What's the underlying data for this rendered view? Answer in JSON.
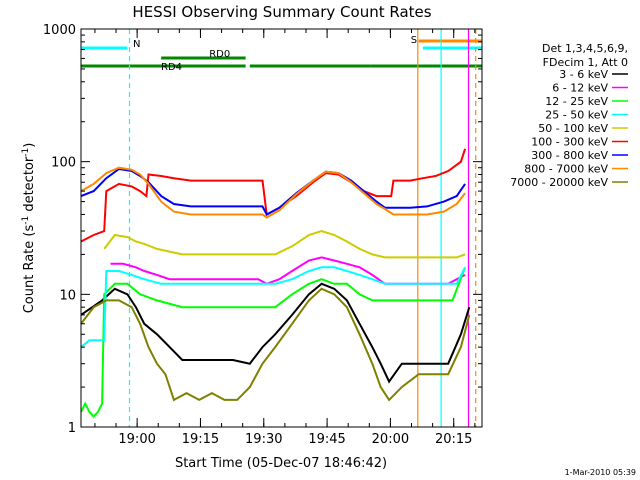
{
  "chart_data": {
    "type": "line",
    "title": "HESSI Observing Summary Count Rates",
    "xlabel": "Start Time (05-Dec-07 18:46:42)",
    "ylabel": "Count Rate (s⁻¹ detector⁻¹)",
    "ylabel_main": "Count Rate (s",
    "ylabel_sup1": "-1",
    "ylabel_mid": " detector",
    "ylabel_sup2": "-1",
    "ylabel_end": ")",
    "yscale": "log",
    "ylim": [
      1,
      1000
    ],
    "xlim_minutes": [
      0,
      95
    ],
    "x_ticks": [
      {
        "label": "19:00",
        "minutes": 13.3
      },
      {
        "label": "19:15",
        "minutes": 28.3
      },
      {
        "label": "19:30",
        "minutes": 43.3
      },
      {
        "label": "19:45",
        "minutes": 58.3
      },
      {
        "label": "20:00",
        "minutes": 73.3
      },
      {
        "label": "20:15",
        "minutes": 88.3
      }
    ],
    "y_ticks": [
      {
        "label": "1",
        "value": 1
      },
      {
        "label": "10",
        "value": 10
      },
      {
        "label": "100",
        "value": 100
      },
      {
        "label": "1000",
        "value": 1000
      }
    ],
    "legend_header": [
      "Det 1,3,4,5,6,9,",
      "FDecim 1, Att 0"
    ],
    "series": [
      {
        "name": "3 - 6 keV",
        "color": "#000000",
        "points": [
          [
            0,
            7
          ],
          [
            5,
            9
          ],
          [
            8,
            11
          ],
          [
            11,
            10
          ],
          [
            13,
            8
          ],
          [
            15,
            6
          ],
          [
            18,
            5
          ],
          [
            21,
            4
          ],
          [
            24,
            3.2
          ],
          [
            30,
            3.2
          ],
          [
            36,
            3.2
          ],
          [
            40,
            3
          ],
          [
            43,
            4
          ],
          [
            46,
            5
          ],
          [
            50,
            7
          ],
          [
            54,
            10
          ],
          [
            57,
            12
          ],
          [
            60,
            11
          ],
          [
            63,
            9
          ],
          [
            66,
            6
          ],
          [
            69,
            4
          ],
          [
            71,
            3
          ],
          [
            73,
            2.2
          ],
          [
            76,
            3
          ],
          [
            80,
            3
          ],
          [
            84,
            3
          ],
          [
            87,
            3
          ],
          [
            90,
            5
          ],
          [
            92,
            8
          ]
        ]
      },
      {
        "name": "6 - 12 keV",
        "color": "#ff00ff",
        "points": [
          [
            7,
            17
          ],
          [
            10,
            17
          ],
          [
            13,
            16
          ],
          [
            15,
            15
          ],
          [
            18,
            14
          ],
          [
            21,
            13
          ],
          [
            24,
            13
          ],
          [
            27,
            13
          ],
          [
            30,
            13
          ],
          [
            33,
            13
          ],
          [
            36,
            13
          ],
          [
            39,
            13
          ],
          [
            42,
            13
          ],
          [
            44,
            12
          ],
          [
            47,
            13
          ],
          [
            50,
            15
          ],
          [
            54,
            18
          ],
          [
            57,
            19
          ],
          [
            60,
            18
          ],
          [
            63,
            17
          ],
          [
            66,
            16
          ],
          [
            69,
            14
          ],
          [
            72,
            12
          ],
          [
            73.5,
            12
          ],
          [
            75,
            12
          ],
          [
            80,
            12
          ],
          [
            84,
            12
          ],
          [
            87,
            12
          ],
          [
            89,
            13
          ],
          [
            91,
            14
          ]
        ]
      },
      {
        "name": "12 - 25 keV",
        "color": "#00ff00",
        "points": [
          [
            0,
            1.3
          ],
          [
            1,
            1.5
          ],
          [
            2,
            1.3
          ],
          [
            3,
            1.2
          ],
          [
            4,
            1.3
          ],
          [
            5,
            1.5
          ],
          [
            5.5,
            10
          ],
          [
            8,
            12
          ],
          [
            11,
            12
          ],
          [
            14,
            10
          ],
          [
            18,
            9
          ],
          [
            24,
            8
          ],
          [
            30,
            8
          ],
          [
            36,
            8
          ],
          [
            40,
            8
          ],
          [
            43,
            8
          ],
          [
            46,
            8
          ],
          [
            50,
            10
          ],
          [
            54,
            12
          ],
          [
            57,
            13
          ],
          [
            60,
            12
          ],
          [
            63,
            12
          ],
          [
            66,
            10
          ],
          [
            69,
            9
          ],
          [
            72,
            9
          ],
          [
            73.5,
            9
          ],
          [
            76,
            9
          ],
          [
            80,
            9
          ],
          [
            84,
            9
          ],
          [
            88,
            9
          ],
          [
            91,
            16
          ]
        ]
      },
      {
        "name": "25 - 50 keV",
        "color": "#00ffff",
        "points": [
          [
            0,
            4
          ],
          [
            2,
            4.5
          ],
          [
            4,
            4.5
          ],
          [
            5.5,
            4.5
          ],
          [
            6,
            15
          ],
          [
            9,
            15
          ],
          [
            12,
            14
          ],
          [
            15,
            13
          ],
          [
            19,
            12
          ],
          [
            24,
            12
          ],
          [
            30,
            12
          ],
          [
            36,
            12
          ],
          [
            40,
            12
          ],
          [
            43,
            12
          ],
          [
            46,
            12
          ],
          [
            50,
            13
          ],
          [
            54,
            15
          ],
          [
            57,
            16
          ],
          [
            60,
            16
          ],
          [
            63,
            15
          ],
          [
            66,
            14
          ],
          [
            69,
            13
          ],
          [
            72,
            12
          ],
          [
            74,
            12
          ],
          [
            78,
            12
          ],
          [
            82,
            12
          ],
          [
            86,
            12
          ],
          [
            89,
            12
          ],
          [
            91,
            16
          ]
        ]
      },
      {
        "name": "50 - 100 keV",
        "color": "#cccc00",
        "points": [
          [
            5.5,
            22
          ],
          [
            8,
            28
          ],
          [
            11,
            27
          ],
          [
            13,
            25
          ],
          [
            15,
            24
          ],
          [
            18,
            22
          ],
          [
            21,
            21
          ],
          [
            24,
            20
          ],
          [
            30,
            20
          ],
          [
            36,
            20
          ],
          [
            40,
            20
          ],
          [
            43,
            20
          ],
          [
            46,
            20
          ],
          [
            50,
            23
          ],
          [
            54,
            28
          ],
          [
            57,
            30
          ],
          [
            60,
            28
          ],
          [
            63,
            25
          ],
          [
            66,
            22
          ],
          [
            69,
            20
          ],
          [
            72,
            19
          ],
          [
            74,
            19
          ],
          [
            78,
            19
          ],
          [
            82,
            19
          ],
          [
            86,
            19
          ],
          [
            89,
            19
          ],
          [
            91,
            20
          ]
        ]
      },
      {
        "name": "100 - 300 keV",
        "color": "#ff0000",
        "points": [
          [
            0,
            25
          ],
          [
            3,
            28
          ],
          [
            5.5,
            30
          ],
          [
            6,
            60
          ],
          [
            9,
            68
          ],
          [
            12,
            65
          ],
          [
            14,
            60
          ],
          [
            15.5,
            55
          ],
          [
            16,
            80
          ],
          [
            19,
            78
          ],
          [
            22,
            75
          ],
          [
            26,
            72
          ],
          [
            30,
            72
          ],
          [
            35,
            72
          ],
          [
            39,
            72
          ],
          [
            43,
            72
          ],
          [
            44,
            40
          ],
          [
            47,
            45
          ],
          [
            51,
            55
          ],
          [
            55,
            70
          ],
          [
            58,
            82
          ],
          [
            61,
            80
          ],
          [
            64,
            70
          ],
          [
            67,
            60
          ],
          [
            70,
            55
          ],
          [
            73.5,
            55
          ],
          [
            74,
            72
          ],
          [
            78,
            72
          ],
          [
            81,
            75
          ],
          [
            84,
            78
          ],
          [
            87,
            85
          ],
          [
            90,
            100
          ],
          [
            91,
            125
          ]
        ]
      },
      {
        "name": "300 - 800 keV",
        "color": "#0000ff",
        "points": [
          [
            0,
            55
          ],
          [
            3,
            60
          ],
          [
            6,
            75
          ],
          [
            9,
            88
          ],
          [
            12,
            85
          ],
          [
            14,
            78
          ],
          [
            16,
            70
          ],
          [
            19,
            55
          ],
          [
            22,
            48
          ],
          [
            26,
            46
          ],
          [
            30,
            46
          ],
          [
            36,
            46
          ],
          [
            40,
            46
          ],
          [
            43,
            46
          ],
          [
            44,
            40
          ],
          [
            47,
            45
          ],
          [
            51,
            58
          ],
          [
            55,
            72
          ],
          [
            58,
            84
          ],
          [
            61,
            82
          ],
          [
            64,
            72
          ],
          [
            67,
            60
          ],
          [
            70,
            50
          ],
          [
            72,
            45
          ],
          [
            74,
            45
          ],
          [
            78,
            45
          ],
          [
            82,
            46
          ],
          [
            86,
            50
          ],
          [
            89,
            55
          ],
          [
            91,
            68
          ]
        ]
      },
      {
        "name": "800 - 7000 keV",
        "color": "#ff8800",
        "points": [
          [
            0,
            60
          ],
          [
            3,
            68
          ],
          [
            6,
            82
          ],
          [
            9,
            90
          ],
          [
            12,
            87
          ],
          [
            14,
            80
          ],
          [
            16,
            68
          ],
          [
            19,
            50
          ],
          [
            22,
            42
          ],
          [
            26,
            40
          ],
          [
            30,
            40
          ],
          [
            36,
            40
          ],
          [
            40,
            40
          ],
          [
            43,
            40
          ],
          [
            44,
            38
          ],
          [
            47,
            43
          ],
          [
            51,
            57
          ],
          [
            55,
            72
          ],
          [
            58,
            84
          ],
          [
            61,
            82
          ],
          [
            64,
            70
          ],
          [
            67,
            58
          ],
          [
            70,
            48
          ],
          [
            72,
            44
          ],
          [
            74,
            40
          ],
          [
            78,
            40
          ],
          [
            82,
            40
          ],
          [
            86,
            42
          ],
          [
            89,
            48
          ],
          [
            91,
            58
          ]
        ]
      },
      {
        "name": "7000 - 20000 keV",
        "color": "#808000",
        "points": [
          [
            0,
            6
          ],
          [
            3,
            8
          ],
          [
            6,
            9
          ],
          [
            9,
            9
          ],
          [
            12,
            8
          ],
          [
            14,
            6
          ],
          [
            16,
            4
          ],
          [
            18,
            3
          ],
          [
            20,
            2.5
          ],
          [
            22,
            1.6
          ],
          [
            25,
            1.8
          ],
          [
            28,
            1.6
          ],
          [
            31,
            1.8
          ],
          [
            34,
            1.6
          ],
          [
            37,
            1.6
          ],
          [
            40,
            2
          ],
          [
            43,
            3
          ],
          [
            46,
            4
          ],
          [
            50,
            6
          ],
          [
            54,
            9
          ],
          [
            57,
            11
          ],
          [
            60,
            10
          ],
          [
            63,
            8
          ],
          [
            66,
            5
          ],
          [
            69,
            3
          ],
          [
            71,
            2
          ],
          [
            73,
            1.6
          ],
          [
            76,
            2
          ],
          [
            80,
            2.5
          ],
          [
            84,
            2.5
          ],
          [
            87,
            2.5
          ],
          [
            90,
            4
          ],
          [
            92,
            7
          ]
        ]
      }
    ],
    "flags": [
      {
        "name": "N",
        "color": "#00ffff",
        "label_visible": true,
        "segments": [
          [
            0,
            11
          ]
        ]
      },
      {
        "name": "RD0",
        "color": "#008800",
        "label_visible": true,
        "segments": [
          [
            19,
            39
          ]
        ]
      },
      {
        "name": "RD4",
        "color": "#008800",
        "label_visible": true,
        "segments": [
          [
            0,
            39
          ],
          [
            40,
            68.5
          ],
          [
            68.5,
            100
          ]
        ]
      },
      {
        "name": "S",
        "color": "#ff8800",
        "label_visible": true,
        "segments": [
          [
            80,
            100
          ]
        ]
      },
      {
        "name": "",
        "color": "#00ffff",
        "label_visible": false,
        "segments": [
          [
            81,
            100
          ]
        ]
      }
    ],
    "vertical_lines": [
      {
        "minutes": 11.5,
        "color": "#00ffff",
        "style": "dashed"
      },
      {
        "minutes": 85.3,
        "color": "#00ffff",
        "style": "solid"
      },
      {
        "minutes": 79.8,
        "color": "#ff8800",
        "style": "solid"
      },
      {
        "minutes": 93.5,
        "color": "#ff8800",
        "style": "dashed"
      },
      {
        "minutes": 91.8,
        "color": "#ff00ff",
        "style": "solid"
      }
    ],
    "timestamp": "1-Mar-2010 05:39",
    "grid": false,
    "legend_position": "right"
  }
}
